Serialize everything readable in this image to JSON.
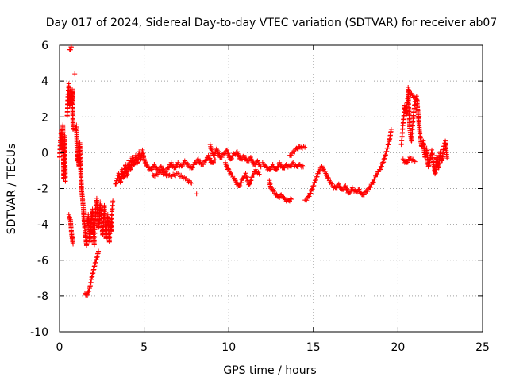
{
  "colors": {
    "series": "#ff0000",
    "grid": "#a0a0a0",
    "axis": "#000000"
  },
  "chart_data": {
    "type": "scatter",
    "title": "Day 017 of 2024, Sidereal Day-to-day VTEC variation (SDTVAR) for receiver ab07",
    "xlabel": "GPS time / hours",
    "ylabel": "SDTVAR / TECUs",
    "xlim": [
      0,
      25
    ],
    "ylim": [
      -10,
      6
    ],
    "xticks": [
      0,
      5,
      10,
      15,
      20,
      25
    ],
    "yticks": [
      -10,
      -8,
      -6,
      -4,
      -2,
      0,
      2,
      4,
      6
    ],
    "xtick_labels": [
      "0",
      "5",
      "10",
      "15",
      "20",
      "25"
    ],
    "ytick_labels": [
      "-10",
      "-8",
      "-6",
      "-4",
      "-2",
      "0",
      "2",
      "4",
      "6"
    ],
    "grid": true,
    "marker": "+",
    "series": [
      {
        "name": "SDTVAR",
        "color": "#ff0000",
        "segments": [
          [
            [
              0.0,
              -0.3
            ],
            [
              0.05,
              0.6
            ],
            [
              0.1,
              1.2
            ],
            [
              0.15,
              0.2
            ],
            [
              0.2,
              1.5
            ],
            [
              0.25,
              -1.5
            ],
            [
              0.3,
              0.9
            ],
            [
              0.35,
              -1.6
            ]
          ],
          [
            [
              0.45,
              2.0
            ],
            [
              0.5,
              3.2
            ],
            [
              0.55,
              3.8
            ],
            [
              0.6,
              2.6
            ],
            [
              0.65,
              3.0
            ],
            [
              0.7,
              2.7
            ],
            [
              0.75,
              3.5
            ],
            [
              0.8,
              1.3
            ]
          ],
          [
            [
              0.6,
              5.7
            ],
            [
              0.7,
              5.9
            ]
          ],
          [
            [
              0.9,
              4.4
            ]
          ],
          [
            [
              0.55,
              -3.5
            ],
            [
              0.65,
              -3.8
            ],
            [
              0.7,
              -4.4
            ],
            [
              0.75,
              -4.8
            ],
            [
              0.8,
              -5.1
            ]
          ],
          [
            [
              0.9,
              1.2
            ],
            [
              1.0,
              1.5
            ],
            [
              1.05,
              -0.5
            ],
            [
              1.1,
              -0.3
            ],
            [
              1.15,
              -0.8
            ],
            [
              1.2,
              0.5
            ],
            [
              1.25,
              -1.0
            ],
            [
              1.3,
              -2.0
            ],
            [
              1.35,
              -2.5
            ],
            [
              1.4,
              -3.0
            ],
            [
              1.45,
              -3.8
            ],
            [
              1.5,
              -4.3
            ],
            [
              1.55,
              -4.8
            ],
            [
              1.6,
              -5.2
            ],
            [
              1.65,
              -4.0
            ],
            [
              1.7,
              -3.5
            ],
            [
              1.75,
              -4.6
            ],
            [
              1.8,
              -5.0
            ],
            [
              1.85,
              -4.2
            ],
            [
              1.9,
              -3.6
            ],
            [
              1.95,
              -3.2
            ],
            [
              2.0,
              -4.5
            ],
            [
              2.05,
              -5.2
            ],
            [
              2.1,
              -4.0
            ],
            [
              2.15,
              -3.0
            ],
            [
              2.2,
              -2.6
            ],
            [
              2.25,
              -3.4
            ],
            [
              2.3,
              -4.2
            ],
            [
              2.35,
              -3.8
            ],
            [
              2.4,
              -2.8
            ],
            [
              2.45,
              -3.3
            ],
            [
              2.5,
              -4.0
            ],
            [
              2.55,
              -4.6
            ],
            [
              2.6,
              -3.9
            ],
            [
              2.65,
              -3.0
            ],
            [
              2.7,
              -4.2
            ],
            [
              2.75,
              -4.8
            ],
            [
              2.8,
              -4.1
            ],
            [
              2.85,
              -3.5
            ],
            [
              2.9,
              -4.4
            ],
            [
              2.95,
              -5.0
            ],
            [
              3.0,
              -3.8
            ],
            [
              3.05,
              -4.4
            ],
            [
              3.1,
              -3.2
            ],
            [
              3.15,
              -2.7
            ]
          ],
          [
            [
              1.5,
              -7.9
            ],
            [
              1.6,
              -8.0
            ],
            [
              1.7,
              -7.8
            ],
            [
              1.8,
              -7.5
            ],
            [
              1.9,
              -7.0
            ],
            [
              2.0,
              -6.6
            ],
            [
              2.1,
              -6.2
            ],
            [
              2.2,
              -5.9
            ],
            [
              2.3,
              -5.5
            ]
          ],
          [
            [
              3.3,
              -1.8
            ],
            [
              3.4,
              -1.5
            ],
            [
              3.5,
              -1.2
            ],
            [
              3.6,
              -1.7
            ],
            [
              3.7,
              -1.0
            ],
            [
              3.8,
              -1.4
            ],
            [
              3.9,
              -0.7
            ],
            [
              4.0,
              -1.3
            ],
            [
              4.1,
              -0.5
            ],
            [
              4.2,
              -1.0
            ],
            [
              4.3,
              -0.3
            ],
            [
              4.4,
              -0.7
            ],
            [
              4.5,
              -0.2
            ],
            [
              4.6,
              -0.6
            ],
            [
              4.7,
              0.0
            ],
            [
              4.8,
              -0.4
            ],
            [
              4.9,
              0.1
            ],
            [
              5.0,
              -0.4
            ],
            [
              5.2,
              -0.8
            ],
            [
              5.4,
              -1.0
            ],
            [
              5.6,
              -0.7
            ],
            [
              5.8,
              -1.0
            ],
            [
              6.0,
              -0.8
            ],
            [
              6.2,
              -1.1
            ],
            [
              6.4,
              -0.9
            ],
            [
              6.6,
              -0.6
            ],
            [
              6.8,
              -0.9
            ],
            [
              7.0,
              -0.6
            ],
            [
              7.2,
              -0.8
            ],
            [
              7.4,
              -0.5
            ],
            [
              7.6,
              -0.7
            ],
            [
              7.8,
              -0.9
            ],
            [
              8.0,
              -0.6
            ],
            [
              8.2,
              -0.4
            ],
            [
              8.4,
              -0.7
            ],
            [
              8.6,
              -0.5
            ],
            [
              8.8,
              -0.2
            ],
            [
              9.0,
              -0.6
            ],
            [
              9.2,
              -0.4
            ]
          ],
          [
            [
              5.5,
              -1.3
            ],
            [
              6.0,
              -1.1
            ],
            [
              6.5,
              -1.3
            ],
            [
              7.0,
              -1.2
            ],
            [
              7.5,
              -1.5
            ],
            [
              7.8,
              -1.7
            ]
          ],
          [
            [
              8.1,
              -2.3
            ]
          ],
          [
            [
              8.9,
              0.4
            ],
            [
              9.0,
              0.1
            ],
            [
              9.1,
              -0.2
            ],
            [
              9.3,
              0.2
            ],
            [
              9.5,
              -0.3
            ],
            [
              9.7,
              -0.1
            ],
            [
              9.9,
              0.1
            ],
            [
              10.1,
              -0.4
            ],
            [
              10.3,
              -0.1
            ],
            [
              10.5,
              0.0
            ],
            [
              10.7,
              -0.4
            ],
            [
              10.9,
              -0.2
            ],
            [
              11.1,
              -0.5
            ],
            [
              11.3,
              -0.3
            ],
            [
              11.5,
              -0.7
            ],
            [
              11.7,
              -0.5
            ],
            [
              11.9,
              -0.8
            ]
          ],
          [
            [
              9.8,
              -0.6
            ],
            [
              10.0,
              -1.0
            ],
            [
              10.2,
              -1.3
            ],
            [
              10.4,
              -1.6
            ],
            [
              10.6,
              -1.9
            ],
            [
              10.8,
              -1.5
            ],
            [
              11.0,
              -1.2
            ],
            [
              11.2,
              -1.8
            ],
            [
              11.4,
              -1.3
            ],
            [
              11.6,
              -1.0
            ],
            [
              11.8,
              -1.2
            ]
          ],
          [
            [
              12.0,
              -0.6
            ],
            [
              12.2,
              -0.8
            ],
            [
              12.4,
              -1.0
            ],
            [
              12.6,
              -0.7
            ],
            [
              12.8,
              -1.0
            ],
            [
              13.0,
              -0.6
            ],
            [
              13.2,
              -0.9
            ],
            [
              13.4,
              -0.7
            ],
            [
              13.6,
              -0.8
            ],
            [
              13.8,
              -0.6
            ],
            [
              14.0,
              -0.8
            ],
            [
              14.2,
              -0.7
            ],
            [
              14.4,
              -0.8
            ]
          ],
          [
            [
              13.6,
              -0.2
            ],
            [
              13.8,
              0.0
            ],
            [
              14.0,
              0.2
            ],
            [
              14.2,
              0.3
            ],
            [
              14.5,
              0.3
            ]
          ],
          [
            [
              12.4,
              -1.6
            ],
            [
              12.5,
              -2.0
            ],
            [
              12.7,
              -2.2
            ],
            [
              12.9,
              -2.5
            ],
            [
              13.1,
              -2.4
            ],
            [
              13.3,
              -2.6
            ],
            [
              13.5,
              -2.7
            ],
            [
              13.7,
              -2.6
            ]
          ],
          [
            [
              14.5,
              -2.7
            ],
            [
              14.7,
              -2.5
            ],
            [
              14.9,
              -2.1
            ],
            [
              15.1,
              -1.6
            ],
            [
              15.3,
              -1.1
            ],
            [
              15.5,
              -0.8
            ],
            [
              15.7,
              -1.1
            ],
            [
              15.9,
              -1.5
            ],
            [
              16.1,
              -1.8
            ],
            [
              16.3,
              -2.0
            ],
            [
              16.5,
              -1.8
            ],
            [
              16.7,
              -2.1
            ],
            [
              16.9,
              -1.9
            ],
            [
              17.1,
              -2.3
            ],
            [
              17.3,
              -2.0
            ],
            [
              17.5,
              -2.2
            ],
            [
              17.7,
              -2.1
            ],
            [
              17.9,
              -2.4
            ],
            [
              18.1,
              -2.2
            ],
            [
              18.3,
              -2.0
            ],
            [
              18.5,
              -1.7
            ],
            [
              18.7,
              -1.3
            ],
            [
              18.9,
              -1.0
            ],
            [
              19.1,
              -0.6
            ],
            [
              19.3,
              0.0
            ],
            [
              19.5,
              0.7
            ],
            [
              19.6,
              1.3
            ]
          ],
          [
            [
              20.2,
              0.4
            ],
            [
              20.3,
              1.6
            ],
            [
              20.4,
              2.6
            ],
            [
              20.5,
              2.1
            ],
            [
              20.6,
              3.3
            ],
            [
              20.7,
              1.3
            ],
            [
              20.8,
              0.6
            ],
            [
              20.9,
              2.0
            ],
            [
              21.0,
              2.8
            ],
            [
              21.1,
              3.1
            ],
            [
              21.2,
              2.1
            ],
            [
              21.3,
              1.0
            ],
            [
              21.4,
              0.3
            ],
            [
              21.5,
              0.6
            ],
            [
              21.6,
              -0.3
            ],
            [
              21.7,
              0.2
            ],
            [
              21.8,
              -0.8
            ],
            [
              21.9,
              -0.4
            ],
            [
              22.0,
              0.1
            ],
            [
              22.1,
              -0.6
            ],
            [
              22.2,
              -1.2
            ],
            [
              22.3,
              -0.2
            ],
            [
              22.4,
              -0.9
            ],
            [
              22.5,
              0.0
            ],
            [
              22.6,
              -0.5
            ],
            [
              22.7,
              0.3
            ],
            [
              22.8,
              0.6
            ],
            [
              22.9,
              -0.3
            ]
          ],
          [
            [
              20.6,
              3.6
            ],
            [
              20.65,
              3.4
            ],
            [
              21.05,
              3.0
            ],
            [
              21.15,
              2.9
            ]
          ],
          [
            [
              20.3,
              -0.4
            ],
            [
              20.5,
              -0.6
            ],
            [
              20.7,
              -0.3
            ],
            [
              21.0,
              -0.5
            ]
          ]
        ]
      }
    ]
  }
}
